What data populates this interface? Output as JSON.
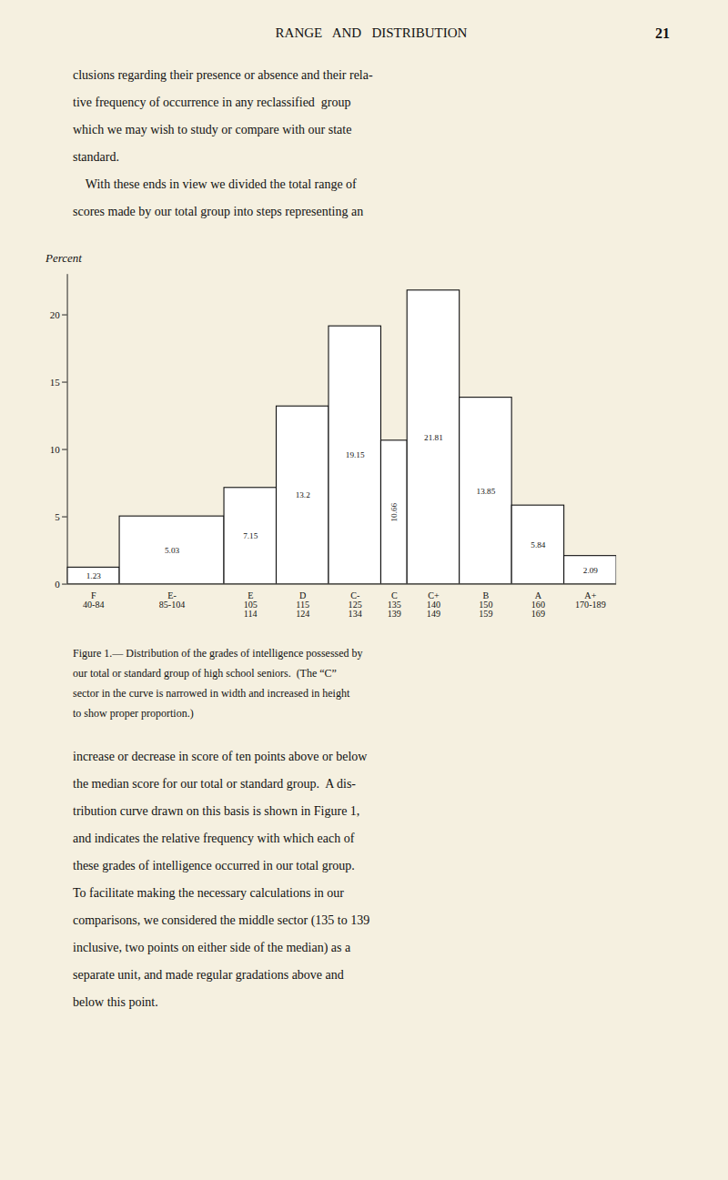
{
  "chart_data": {
    "type": "bar",
    "ylabel": "Percent",
    "categories": [
      "F\n40-84",
      "E-\n85-104",
      "E\n105\n114",
      "D\n115\n124",
      "C-\n125\n134",
      "C\n135\n139",
      "C+\n140\n149",
      "B\n150\n159",
      "A\n160\n169",
      "A+\n170-189"
    ],
    "values": [
      1.23,
      5.03,
      7.15,
      13.2,
      19.15,
      10.66,
      21.81,
      13.85,
      5.84,
      2.09
    ],
    "widths": [
      1.0,
      2.0,
      1.0,
      1.0,
      1.0,
      0.5,
      1.0,
      1.0,
      1.0,
      1.0
    ],
    "color": "#ffffff",
    "ylim": [
      0,
      23
    ],
    "yticks": [
      0,
      5,
      10,
      15,
      20
    ],
    "data_labels": true,
    "caption": [
      "Figure 1.— Distribution of the grades of intelligence possessed by",
      "our total or standard group of high school seniors.  (The “C”",
      "sector in the curve is narrowed in width and increased in height",
      "to show proper proportion.)"
    ],
    "annotations": {
      "header": "RANGE   AND   DISTRIBUTION",
      "page_number": "21",
      "text_above": [
        "clusions regarding their presence or absence and their rela-",
        "tive frequency of occurrence in any reclassified  group",
        "which we may wish to study or compare with our state",
        "standard.",
        "    With these ends in view we divided the total range of",
        "scores made by our total group into steps representing an"
      ],
      "text_below": [
        "increase or decrease in score of ten points above or below",
        "the median score for our total or standard group.  A dis-",
        "tribution curve drawn on this basis is shown in Figure 1,",
        "and indicates the relative frequency with which each of",
        "these grades of intelligence occurred in our total group.",
        "To facilitate making the necessary calculations in our",
        "comparisons, we considered the middle sector (135 to 139",
        "inclusive, two points on either side of the median) as a",
        "separate unit, and made regular gradations above and",
        "below this point."
      ]
    }
  }
}
